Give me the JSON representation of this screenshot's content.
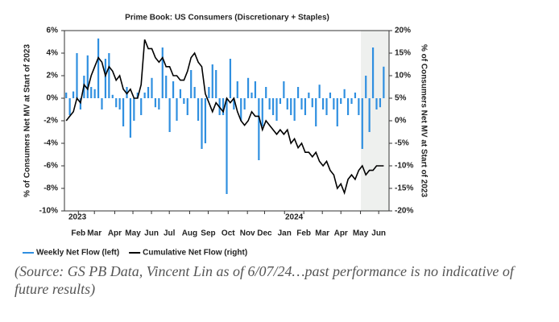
{
  "chart_data": {
    "type": "bar-line",
    "title": "Prime Book: US Consumers (Discretionary + Staples)",
    "ylabel": "% of Consumers Net MV at Start of 2023",
    "y2label": "% of Consumers Net MV at Start of 2023",
    "annotations": [
      "2023",
      "2024"
    ],
    "x": [
      0,
      1,
      2,
      3,
      4,
      5,
      6,
      7,
      8,
      9,
      10,
      11,
      12,
      13,
      14,
      15,
      16,
      17,
      18,
      19,
      20,
      21,
      22,
      23,
      24,
      25,
      26,
      27,
      28,
      29,
      30,
      31,
      32,
      33,
      34,
      35,
      36,
      37,
      38,
      39,
      40,
      41,
      42,
      43,
      44,
      45,
      46,
      47,
      48,
      49,
      50,
      51,
      52,
      53,
      54,
      55,
      56,
      57,
      58,
      59,
      60,
      61,
      62,
      63,
      64,
      65,
      66,
      67,
      68,
      69,
      70,
      71,
      72,
      73,
      74,
      75,
      76,
      77,
      78,
      79,
      80,
      81,
      82,
      83,
      84,
      85,
      86,
      87,
      88,
      89
    ],
    "xlim": [
      -0.5,
      90.5
    ],
    "xticks": [
      {
        "value": 3.4,
        "label": "Feb"
      },
      {
        "value": 7.9,
        "label": "Mar"
      },
      {
        "value": 13.6,
        "label": "Apr"
      },
      {
        "value": 18.7,
        "label": "May"
      },
      {
        "value": 23.9,
        "label": "Jun"
      },
      {
        "value": 28.9,
        "label": "Jul"
      },
      {
        "value": 34.6,
        "label": "Aug"
      },
      {
        "value": 39.8,
        "label": "Sep"
      },
      {
        "value": 45.4,
        "label": "Oct"
      },
      {
        "value": 50.8,
        "label": "Nov"
      },
      {
        "value": 55.6,
        "label": "Dec"
      },
      {
        "value": 61.2,
        "label": "Jan"
      },
      {
        "value": 66.6,
        "label": "Feb"
      },
      {
        "value": 71.8,
        "label": "Mar"
      },
      {
        "value": 77.0,
        "label": "Apr"
      },
      {
        "value": 82.5,
        "label": "May"
      },
      {
        "value": 87.6,
        "label": "Jun"
      }
    ],
    "ylim": [
      -10,
      6
    ],
    "yticks": [
      {
        "value": 6,
        "label": "6%"
      },
      {
        "value": 4,
        "label": "4%"
      },
      {
        "value": 2,
        "label": "2%"
      },
      {
        "value": 0,
        "label": "0%"
      },
      {
        "value": -2,
        "label": "-2%"
      },
      {
        "value": -4,
        "label": "-4%"
      },
      {
        "value": -6,
        "label": "-6%"
      },
      {
        "value": -8,
        "label": "-8%"
      },
      {
        "value": -10,
        "label": "-10%"
      }
    ],
    "y2lim": [
      -20,
      20
    ],
    "y2ticks": [
      {
        "value": 20,
        "label": "20%"
      },
      {
        "value": 15,
        "label": "15%"
      },
      {
        "value": 10,
        "label": "10%"
      },
      {
        "value": 5,
        "label": "5%"
      },
      {
        "value": 0,
        "label": "0%"
      },
      {
        "value": -5,
        "label": "-5%"
      },
      {
        "value": -10,
        "label": "-10%"
      },
      {
        "value": -15,
        "label": "-15%"
      },
      {
        "value": -20,
        "label": "-20%"
      }
    ],
    "series": [
      {
        "name": "Weekly Net Flow (left)",
        "color": "#2f8fe0",
        "kind": "bar",
        "values": [
          0.5,
          -1.5,
          0.6,
          4,
          -1,
          2,
          3.8,
          1,
          0.8,
          5.3,
          -1,
          3.5,
          4,
          0.3,
          -0.8,
          -1,
          -2.5,
          1,
          -3.5,
          -2,
          0.5,
          -1.5,
          0.5,
          1,
          1.8,
          -0.8,
          -1,
          4.5,
          2,
          -3,
          1.5,
          -2,
          0.8,
          -0.5,
          -1.5,
          2.5,
          1,
          -2,
          -4.5,
          -4,
          1,
          3,
          2.5,
          -1.5,
          -1.5,
          -8.5,
          3.5,
          -1,
          1.5,
          -2,
          -1,
          1.8,
          0.5,
          1.5,
          -5.5,
          -2.5,
          1,
          -1,
          -1.5,
          -2,
          -0.5,
          1.5,
          -1,
          -1.5,
          -2,
          1,
          -1,
          -1.5,
          0.5,
          -0.8,
          -2.5,
          1.2,
          -1,
          -1.5,
          0.5,
          -1,
          -2.5,
          -0.5,
          0.8,
          -1.5,
          -0.5,
          0.5,
          -1.5,
          -4.5,
          2,
          -3,
          4.5,
          -1,
          -0.8,
          2.8
        ]
      },
      {
        "name": "Cumulative Net Flow (right)",
        "color": "#000000",
        "kind": "line",
        "axis": "y2",
        "values": [
          0,
          1,
          2,
          5,
          4,
          8,
          7,
          10,
          12,
          14,
          13,
          10,
          12,
          11,
          9,
          10,
          7,
          6,
          7,
          5,
          5,
          8,
          18,
          16,
          16,
          14,
          13,
          14,
          12,
          12,
          10,
          10,
          9,
          9,
          11,
          14,
          15,
          13,
          12,
          6,
          4,
          2,
          4,
          3,
          2,
          5,
          4,
          5,
          2,
          0,
          -1,
          0,
          2,
          1,
          1,
          -2,
          0,
          -1,
          -2,
          -3,
          -2,
          -3,
          -2,
          -5,
          -4,
          -6,
          -5,
          -7,
          -7,
          -8,
          -7,
          -9,
          -10,
          -9,
          -11,
          -12,
          -15,
          -14,
          -16,
          -13,
          -12,
          -13,
          -11,
          -10,
          -12,
          -11,
          -11,
          -10,
          -10,
          -10
        ]
      }
    ],
    "source": "(Source: GS PB Data, Vincent Lin as of 6/07/24…past performance is no indicative of future results)"
  }
}
